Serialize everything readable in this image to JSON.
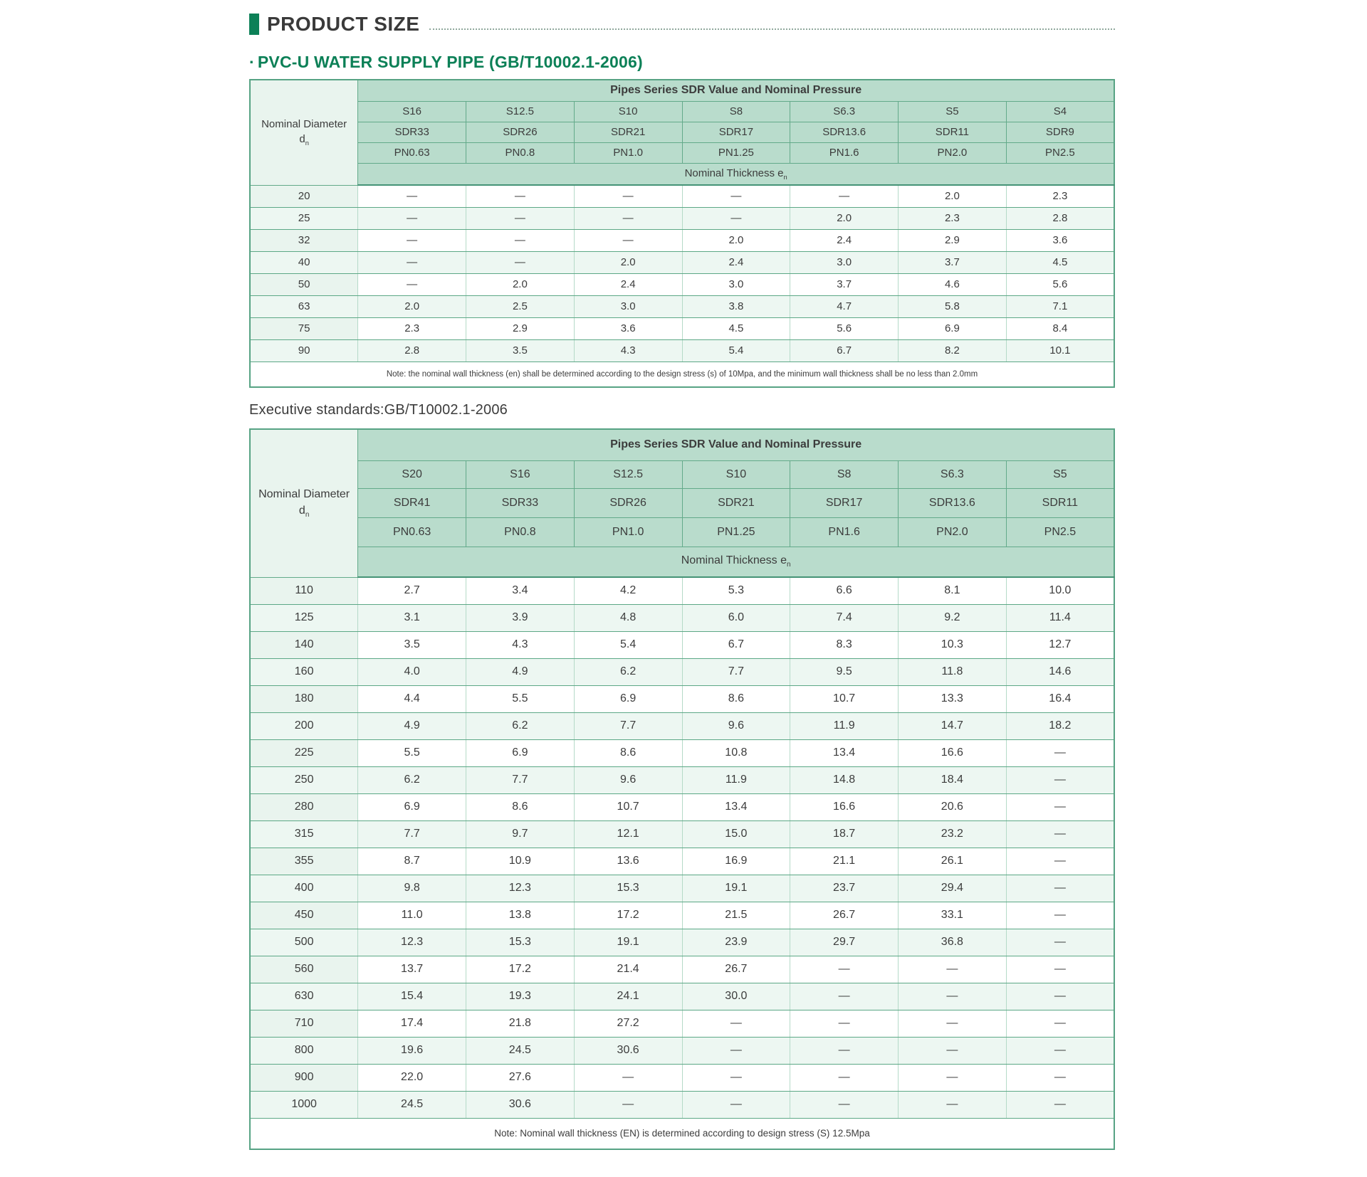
{
  "page": {
    "section_title": "PRODUCT SIZE",
    "subtitle_bullet": "·",
    "subtitle": "PVC-U WATER SUPPLY PIPE (GB/T10002.1-2006)",
    "executive_standards": "Executive standards:GB/T10002.1-2006"
  },
  "colors": {
    "accent_green": "#0c8057",
    "header_bg": "#b9dccc",
    "first_col_bg": "#e9f4ee",
    "alt_row_bg": "#edf7f2",
    "border_dark": "#57a384",
    "border_light": "#b5dac8",
    "title_text": "#3a3a3a"
  },
  "tables": [
    {
      "corner": {
        "label": "Nominal Diameter",
        "symbol": "d",
        "sub": "n"
      },
      "span_header": "Pipes Series SDR Value and Nominal Pressure",
      "s_row": [
        "S16",
        "S12.5",
        "S10",
        "S8",
        "S6.3",
        "S5",
        "S4"
      ],
      "sdr_row": [
        "SDR33",
        "SDR26",
        "SDR21",
        "SDR17",
        "SDR13.6",
        "SDR11",
        "SDR9"
      ],
      "pn_row": [
        "PN0.63",
        "PN0.8",
        "PN1.0",
        "PN1.25",
        "PN1.6",
        "PN2.0",
        "PN2.5"
      ],
      "thickness": {
        "label": "Nominal Thickness e",
        "sub": "n"
      },
      "rows": [
        {
          "d": "20",
          "cells": [
            "—",
            "—",
            "—",
            "—",
            "—",
            "2.0",
            "2.3"
          ]
        },
        {
          "d": "25",
          "cells": [
            "—",
            "—",
            "—",
            "—",
            "2.0",
            "2.3",
            "2.8"
          ]
        },
        {
          "d": "32",
          "cells": [
            "—",
            "—",
            "—",
            "2.0",
            "2.4",
            "2.9",
            "3.6"
          ]
        },
        {
          "d": "40",
          "cells": [
            "—",
            "—",
            "2.0",
            "2.4",
            "3.0",
            "3.7",
            "4.5"
          ]
        },
        {
          "d": "50",
          "cells": [
            "—",
            "2.0",
            "2.4",
            "3.0",
            "3.7",
            "4.6",
            "5.6"
          ]
        },
        {
          "d": "63",
          "cells": [
            "2.0",
            "2.5",
            "3.0",
            "3.8",
            "4.7",
            "5.8",
            "7.1"
          ]
        },
        {
          "d": "75",
          "cells": [
            "2.3",
            "2.9",
            "3.6",
            "4.5",
            "5.6",
            "6.9",
            "8.4"
          ]
        },
        {
          "d": "90",
          "cells": [
            "2.8",
            "3.5",
            "4.3",
            "5.4",
            "6.7",
            "8.2",
            "10.1"
          ]
        }
      ],
      "note": "Note: the nominal wall thickness (en) shall be determined according to the design stress (s) of 10Mpa, and the minimum wall thickness shall be no less than 2.0mm"
    },
    {
      "corner": {
        "label": "Nominal Diameter",
        "symbol": "d",
        "sub": "n"
      },
      "span_header": "Pipes Series SDR Value and Nominal Pressure",
      "s_row": [
        "S20",
        "S16",
        "S12.5",
        "S10",
        "S8",
        "S6.3",
        "S5"
      ],
      "sdr_row": [
        "SDR41",
        "SDR33",
        "SDR26",
        "SDR21",
        "SDR17",
        "SDR13.6",
        "SDR11"
      ],
      "pn_row": [
        "PN0.63",
        "PN0.8",
        "PN1.0",
        "PN1.25",
        "PN1.6",
        "PN2.0",
        "PN2.5"
      ],
      "thickness": {
        "label": "Nominal Thickness e",
        "sub": "n"
      },
      "rows": [
        {
          "d": "110",
          "cells": [
            "2.7",
            "3.4",
            "4.2",
            "5.3",
            "6.6",
            "8.1",
            "10.0"
          ]
        },
        {
          "d": "125",
          "cells": [
            "3.1",
            "3.9",
            "4.8",
            "6.0",
            "7.4",
            "9.2",
            "11.4"
          ]
        },
        {
          "d": "140",
          "cells": [
            "3.5",
            "4.3",
            "5.4",
            "6.7",
            "8.3",
            "10.3",
            "12.7"
          ]
        },
        {
          "d": "160",
          "cells": [
            "4.0",
            "4.9",
            "6.2",
            "7.7",
            "9.5",
            "11.8",
            "14.6"
          ]
        },
        {
          "d": "180",
          "cells": [
            "4.4",
            "5.5",
            "6.9",
            "8.6",
            "10.7",
            "13.3",
            "16.4"
          ]
        },
        {
          "d": "200",
          "cells": [
            "4.9",
            "6.2",
            "7.7",
            "9.6",
            "11.9",
            "14.7",
            "18.2"
          ]
        },
        {
          "d": "225",
          "cells": [
            "5.5",
            "6.9",
            "8.6",
            "10.8",
            "13.4",
            "16.6",
            "—"
          ]
        },
        {
          "d": "250",
          "cells": [
            "6.2",
            "7.7",
            "9.6",
            "11.9",
            "14.8",
            "18.4",
            "—"
          ]
        },
        {
          "d": "280",
          "cells": [
            "6.9",
            "8.6",
            "10.7",
            "13.4",
            "16.6",
            "20.6",
            "—"
          ]
        },
        {
          "d": "315",
          "cells": [
            "7.7",
            "9.7",
            "12.1",
            "15.0",
            "18.7",
            "23.2",
            "—"
          ]
        },
        {
          "d": "355",
          "cells": [
            "8.7",
            "10.9",
            "13.6",
            "16.9",
            "21.1",
            "26.1",
            "—"
          ]
        },
        {
          "d": "400",
          "cells": [
            "9.8",
            "12.3",
            "15.3",
            "19.1",
            "23.7",
            "29.4",
            "—"
          ]
        },
        {
          "d": "450",
          "cells": [
            "11.0",
            "13.8",
            "17.2",
            "21.5",
            "26.7",
            "33.1",
            "—"
          ]
        },
        {
          "d": "500",
          "cells": [
            "12.3",
            "15.3",
            "19.1",
            "23.9",
            "29.7",
            "36.8",
            "—"
          ]
        },
        {
          "d": "560",
          "cells": [
            "13.7",
            "17.2",
            "21.4",
            "26.7",
            "—",
            "—",
            "—"
          ]
        },
        {
          "d": "630",
          "cells": [
            "15.4",
            "19.3",
            "24.1",
            "30.0",
            "—",
            "—",
            "—"
          ]
        },
        {
          "d": "710",
          "cells": [
            "17.4",
            "21.8",
            "27.2",
            "—",
            "—",
            "—",
            "—"
          ]
        },
        {
          "d": "800",
          "cells": [
            "19.6",
            "24.5",
            "30.6",
            "—",
            "—",
            "—",
            "—"
          ]
        },
        {
          "d": "900",
          "cells": [
            "22.0",
            "27.6",
            "—",
            "—",
            "—",
            "—",
            "—"
          ]
        },
        {
          "d": "1000",
          "cells": [
            "24.5",
            "30.6",
            "—",
            "—",
            "—",
            "—",
            "—"
          ]
        }
      ],
      "note": "Note: Nominal wall thickness (EN) is determined according to design stress (S) 12.5Mpa"
    }
  ]
}
